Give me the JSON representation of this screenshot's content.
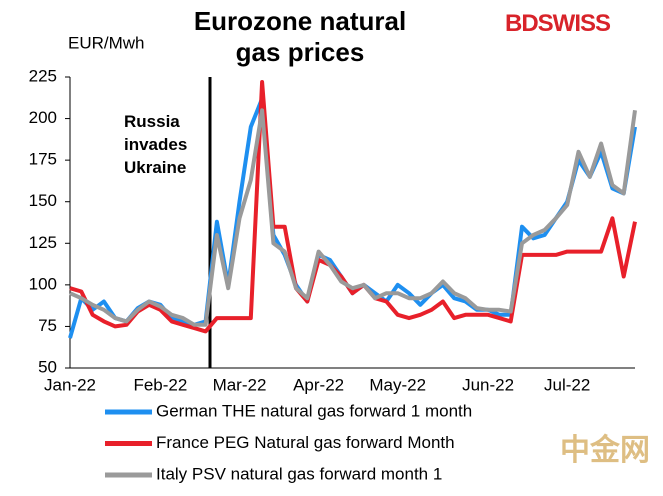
{
  "chart_data": {
    "type": "line",
    "title": "Eurozone natural gas prices",
    "y_label": "EUR/Mwh",
    "annotation": "Russia invades Ukraine",
    "logo": "BDSWISS",
    "watermark": "中金网",
    "categories": [
      "Jan-22",
      null,
      null,
      null,
      null,
      null,
      null,
      null,
      "Feb-22",
      null,
      null,
      null,
      null,
      null,
      null,
      "Mar-22",
      null,
      null,
      null,
      null,
      null,
      null,
      "Apr-22",
      null,
      null,
      null,
      null,
      null,
      null,
      "May-22",
      null,
      null,
      null,
      null,
      null,
      null,
      null,
      "Jun-22",
      null,
      null,
      null,
      null,
      null,
      null,
      "Jul-22",
      null,
      null,
      null,
      null,
      null,
      null
    ],
    "series": [
      {
        "name": "German THE natural gas forward 1 month",
        "color": "#1e8ff0",
        "values": [
          68,
          92,
          85,
          90,
          80,
          78,
          86,
          90,
          88,
          80,
          78,
          76,
          78,
          138,
          100,
          150,
          195,
          212,
          130,
          118,
          100,
          90,
          118,
          115,
          105,
          95,
          100,
          95,
          90,
          100,
          95,
          88,
          95,
          100,
          92,
          90,
          85,
          85,
          82,
          82,
          135,
          128,
          130,
          140,
          150,
          175,
          165,
          180,
          158,
          155,
          195
        ]
      },
      {
        "name": "France PEG Natural gas forward Month",
        "color": "#e8202a",
        "values": [
          98,
          96,
          82,
          78,
          75,
          76,
          84,
          88,
          85,
          78,
          76,
          74,
          72,
          80,
          80,
          80,
          80,
          222,
          135,
          135,
          98,
          90,
          115,
          112,
          105,
          95,
          100,
          92,
          90,
          82,
          80,
          82,
          85,
          90,
          80,
          82,
          82,
          82,
          80,
          78,
          118,
          118,
          118,
          118,
          120,
          120,
          120,
          120,
          140,
          105,
          138
        ]
      },
      {
        "name": "Italy PSV natural gas forward month 1",
        "color": "#9a9a9a",
        "values": [
          95,
          92,
          88,
          85,
          80,
          78,
          85,
          90,
          87,
          82,
          80,
          76,
          76,
          130,
          98,
          140,
          163,
          205,
          125,
          120,
          98,
          92,
          120,
          112,
          102,
          98,
          100,
          92,
          95,
          95,
          92,
          92,
          95,
          102,
          95,
          92,
          86,
          85,
          85,
          84,
          125,
          130,
          133,
          140,
          148,
          180,
          165,
          185,
          160,
          155,
          205
        ]
      }
    ],
    "ylim": [
      50,
      225
    ],
    "yticks": [
      50,
      75,
      100,
      125,
      150,
      175,
      200,
      225
    ]
  }
}
